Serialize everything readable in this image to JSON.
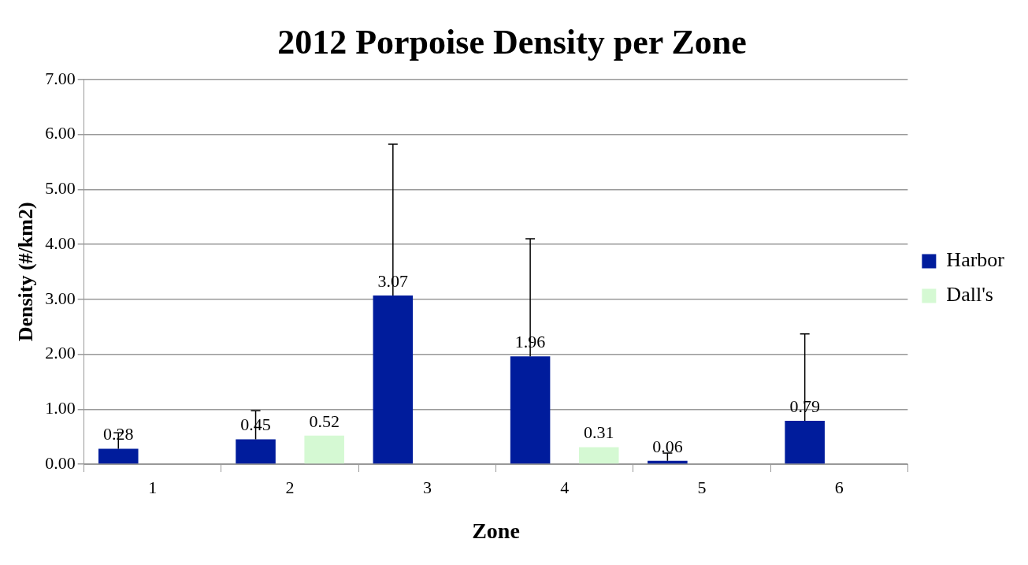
{
  "chart_data": {
    "type": "bar",
    "title": "2012 Porpoise Density per Zone",
    "xlabel": "Zone",
    "ylabel": "Density (#/km2)",
    "categories": [
      "1",
      "2",
      "3",
      "4",
      "5",
      "6"
    ],
    "series": [
      {
        "name": "Harbor",
        "color": "#001c9c",
        "values": [
          0.28,
          0.45,
          3.07,
          1.96,
          0.06,
          0.79
        ],
        "errors": [
          [
            0.28,
            0.57
          ],
          [
            0.45,
            0.97
          ],
          [
            3.07,
            5.82
          ],
          [
            1.96,
            4.1
          ],
          [
            0.06,
            0.2
          ],
          [
            0.79,
            2.37
          ]
        ]
      },
      {
        "name": "Dall's",
        "color": "#d5f9d3",
        "values": [
          null,
          0.52,
          null,
          0.31,
          null,
          null
        ]
      }
    ],
    "ylim": [
      0,
      7
    ],
    "yticks": [
      {
        "value": 0,
        "label": "0.00"
      },
      {
        "value": 1,
        "label": "1.00"
      },
      {
        "value": 2,
        "label": "2.00"
      },
      {
        "value": 3,
        "label": "3.00"
      },
      {
        "value": 4,
        "label": "4.00"
      },
      {
        "value": 5,
        "label": "5.00"
      },
      {
        "value": 6,
        "label": "6.00"
      },
      {
        "value": 7,
        "label": "7.00"
      }
    ],
    "grid": "y",
    "legend": "right",
    "data_labels": true
  }
}
